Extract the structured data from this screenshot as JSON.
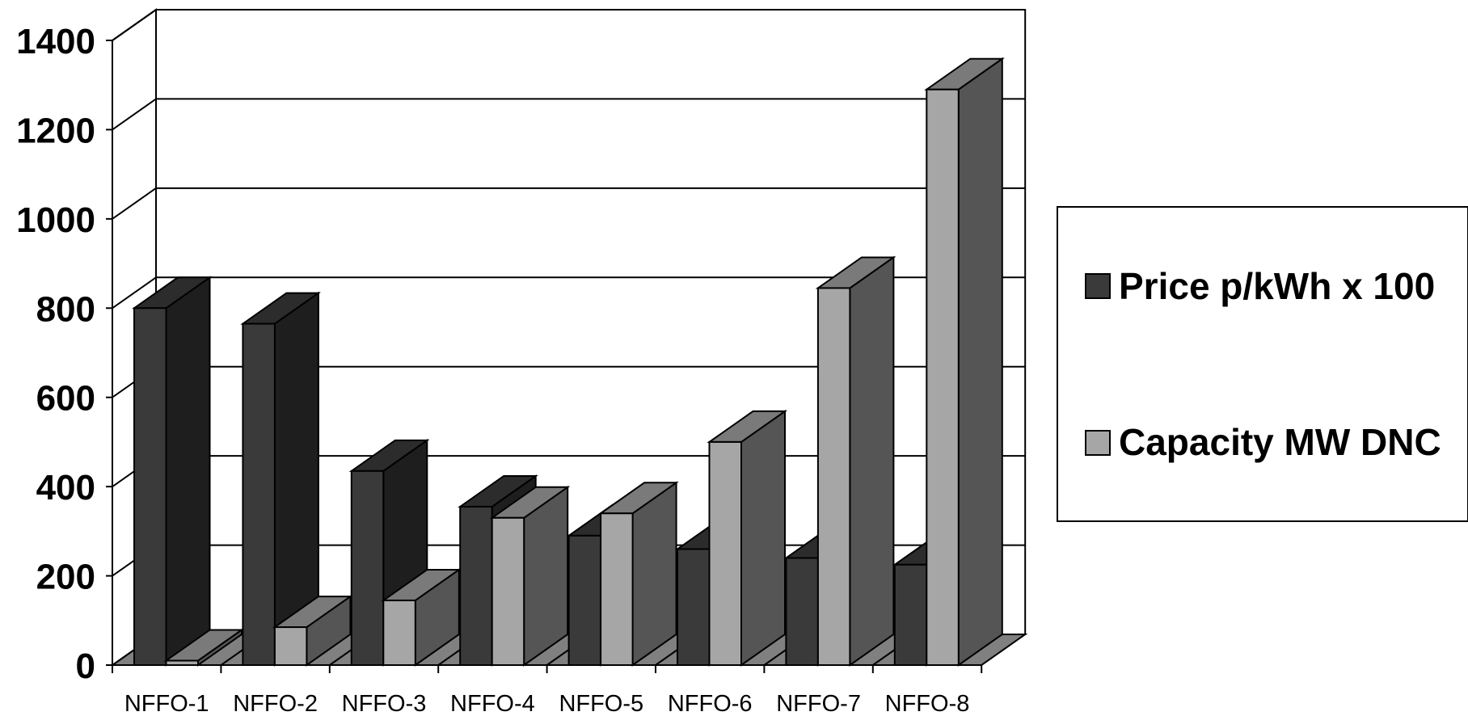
{
  "chart_data": {
    "type": "bar",
    "categories": [
      "NFFO-1",
      "NFFO-2",
      "NFFO-3",
      "NFFO-4",
      "NFFO-5",
      "NFFO-6",
      "NFFO-7",
      "NFFO-8"
    ],
    "series": [
      {
        "name": "Price p/kWh x 100",
        "values": [
          800,
          765,
          435,
          355,
          290,
          260,
          240,
          225
        ],
        "color": "#3a3a3a",
        "side_color": "#1e1e1e",
        "top_color": "#2c2c2c"
      },
      {
        "name": "Capacity MW DNC",
        "values": [
          10,
          85,
          145,
          330,
          340,
          500,
          845,
          1290
        ],
        "color": "#a6a6a6",
        "side_color": "#555555",
        "top_color": "#7a7a7a"
      }
    ],
    "ylim": [
      0,
      1400
    ],
    "yticks": [
      "0",
      "200",
      "400",
      "600",
      "800",
      "1000",
      "1200",
      "1400"
    ],
    "grid": true,
    "legend_position": "right"
  }
}
